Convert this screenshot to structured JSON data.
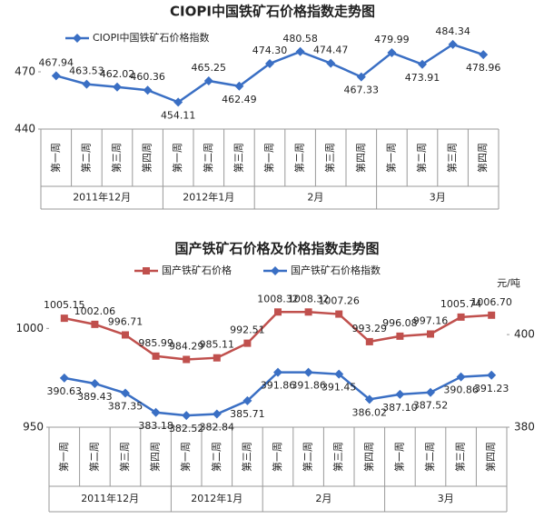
{
  "chart_data": [
    {
      "type": "line",
      "title": "CIOPI中国铁矿石价格指数走势图",
      "groups": [
        {
          "name": "2011年12月",
          "categories": [
            "第一周",
            "第二周",
            "第三周",
            "第四周"
          ]
        },
        {
          "name": "2012年1月",
          "categories": [
            "第一周",
            "第二周",
            "第三周"
          ]
        },
        {
          "name": "2月",
          "categories": [
            "第一周",
            "第二周",
            "第三周",
            "第四周"
          ]
        },
        {
          "name": "3月",
          "categories": [
            "第一周",
            "第二周",
            "第三周",
            "第四周"
          ]
        }
      ],
      "series": [
        {
          "name": "CIOPI中国铁矿石价格指数",
          "color": "#3a6fc4",
          "marker": "diamond",
          "values": [
            467.94,
            463.53,
            462.02,
            460.36,
            454.11,
            465.25,
            462.49,
            474.3,
            480.58,
            474.47,
            467.33,
            479.99,
            473.91,
            484.34,
            478.96
          ],
          "value_labels": [
            "467.94",
            "463.53",
            "462.02",
            "460.36",
            "454.11",
            "465.25",
            "462.49",
            "474.30",
            "480.58",
            "474.47",
            "467.33",
            "479.99",
            "473.91",
            "484.34",
            "478.96"
          ]
        }
      ],
      "ylim": [
        440,
        500
      ],
      "yticks": [
        440,
        470
      ]
    },
    {
      "type": "line",
      "title": "国产铁矿石价格及价格指数走势图",
      "y2_unit": "元/吨",
      "groups": [
        {
          "name": "2011年12月",
          "categories": [
            "第一周",
            "第二周",
            "第三周",
            "第四周"
          ]
        },
        {
          "name": "2012年1月",
          "categories": [
            "第一周",
            "第二周",
            "第三周"
          ]
        },
        {
          "name": "2月",
          "categories": [
            "第一周",
            "第二周",
            "第三周",
            "第四周"
          ]
        },
        {
          "name": "3月",
          "categories": [
            "第一周",
            "第二周",
            "第三周",
            "第四周"
          ]
        }
      ],
      "series": [
        {
          "name": "国产铁矿石价格",
          "color": "#c0504d",
          "marker": "square",
          "values": [
            1005.15,
            1002.06,
            996.71,
            985.99,
            984.29,
            985.11,
            992.51,
            1008.32,
            1008.32,
            1007.26,
            993.29,
            996.08,
            997.16,
            1005.74,
            1006.7
          ],
          "value_labels": [
            "1005.15",
            "1002.06",
            "996.71",
            "985.99",
            "984.29",
            "985.11",
            "992.51",
            "1008.32",
            "1008.32",
            "1007.26",
            "993.29",
            "996.08",
            "997.16",
            "1005.74",
            "1006.70"
          ]
        },
        {
          "name": "国产铁矿石价格指数",
          "color": "#3a6fc4",
          "marker": "diamond",
          "axis": "y2",
          "values": [
            390.63,
            389.43,
            387.35,
            383.18,
            382.52,
            382.84,
            385.71,
            391.86,
            391.86,
            391.45,
            386.02,
            387.1,
            387.52,
            390.86,
            391.23
          ],
          "value_labels": [
            "390.63",
            "389.43",
            "387.35",
            "383.18",
            "382.52",
            "382.84",
            "385.71",
            "391.86",
            "391.86",
            "391.45",
            "386.02",
            "387.10",
            "387.52",
            "390.86",
            "391.23"
          ]
        }
      ],
      "ylim": [
        950,
        1025
      ],
      "yticks": [
        950,
        1000
      ],
      "y2lim": [
        380,
        412
      ],
      "y2ticks": [
        380,
        400
      ]
    }
  ]
}
